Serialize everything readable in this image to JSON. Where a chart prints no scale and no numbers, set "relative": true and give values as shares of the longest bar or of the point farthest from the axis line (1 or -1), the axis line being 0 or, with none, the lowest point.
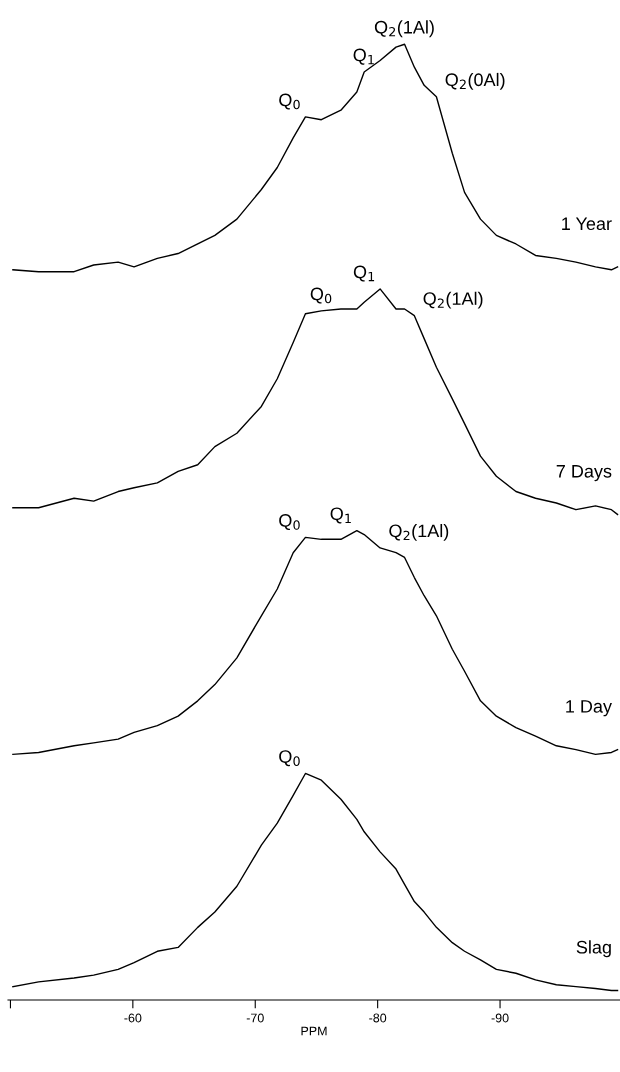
{
  "chart_data": {
    "type": "line",
    "relative": true,
    "xlim": [
      -49.8,
      -99.8
    ],
    "xlabel": "PPM",
    "grid": false,
    "legend": false,
    "xticks": [
      {
        "value": -50,
        "label": null
      },
      -60,
      -70,
      -80,
      -90
    ],
    "x": [
      -50.2,
      -52.3,
      -55.2,
      -56.8,
      -58.8,
      -60.1,
      -62.0,
      -63.7,
      -65.3,
      -66.7,
      -68.5,
      -70.5,
      -71.8,
      -73.1,
      -74.1,
      -75.4,
      -77.0,
      -78.3,
      -78.9,
      -80.2,
      -81.5,
      -82.2,
      -83.0,
      -83.8,
      -84.8,
      -86.1,
      -87.1,
      -88.4,
      -89.7,
      -91.3,
      -92.9,
      -94.6,
      -96.2,
      -97.8,
      -99.1,
      -99.6
    ],
    "series": [
      {
        "name": "1 Year",
        "color": "#000000",
        "values": [
          0.764,
          0.762,
          0.762,
          0.769,
          0.772,
          0.767,
          0.776,
          0.781,
          0.791,
          0.8,
          0.817,
          0.848,
          0.871,
          0.902,
          0.924,
          0.921,
          0.931,
          0.95,
          0.971,
          0.983,
          0.997,
          1.0,
          0.976,
          0.957,
          0.945,
          0.886,
          0.845,
          0.817,
          0.8,
          0.791,
          0.779,
          0.776,
          0.772,
          0.767,
          0.764,
          0.767
        ]
      },
      {
        "name": "7 Days",
        "color": "#000000",
        "values": [
          0.515,
          0.515,
          0.525,
          0.522,
          0.532,
          0.536,
          0.541,
          0.553,
          0.56,
          0.579,
          0.593,
          0.621,
          0.65,
          0.688,
          0.718,
          0.721,
          0.723,
          0.723,
          0.73,
          0.744,
          0.723,
          0.723,
          0.716,
          0.692,
          0.662,
          0.629,
          0.603,
          0.569,
          0.548,
          0.532,
          0.525,
          0.52,
          0.513,
          0.517,
          0.513,
          0.508
        ]
      },
      {
        "name": "1 Day",
        "color": "#000000",
        "values": [
          0.257,
          0.259,
          0.266,
          0.269,
          0.273,
          0.28,
          0.287,
          0.297,
          0.313,
          0.33,
          0.358,
          0.402,
          0.43,
          0.468,
          0.484,
          0.482,
          0.482,
          0.491,
          0.487,
          0.473,
          0.468,
          0.463,
          0.442,
          0.423,
          0.402,
          0.367,
          0.344,
          0.313,
          0.297,
          0.285,
          0.276,
          0.266,
          0.262,
          0.257,
          0.259,
          0.262
        ]
      },
      {
        "name": "Slag",
        "color": "#000000",
        "values": [
          0.014,
          0.019,
          0.023,
          0.026,
          0.032,
          0.039,
          0.051,
          0.055,
          0.076,
          0.092,
          0.119,
          0.162,
          0.185,
          0.214,
          0.237,
          0.23,
          0.21,
          0.189,
          0.176,
          0.155,
          0.137,
          0.121,
          0.103,
          0.092,
          0.076,
          0.06,
          0.051,
          0.042,
          0.032,
          0.028,
          0.021,
          0.016,
          0.014,
          0.012,
          0.01,
          0.01
        ]
      }
    ],
    "annotations": [
      {
        "text": "Q$_{0}$",
        "x": -74.1,
        "y": 0.924
      },
      {
        "text": "Q$_{1}$",
        "x": -78.9,
        "y": 0.971
      },
      {
        "text": "Q$_{2}$(1Al)",
        "x": -82.2,
        "y": 1.0
      },
      {
        "text": "Q$_{2}$(0Al)",
        "x": -84.8,
        "y": 0.945
      },
      {
        "text": "Q$_{0}$",
        "x": -75.4,
        "y": 0.721
      },
      {
        "text": "Q$_{1}$",
        "x": -80.2,
        "y": 0.744
      },
      {
        "text": "Q$_{2}$(1Al)",
        "x": -83.0,
        "y": 0.716
      },
      {
        "text": "Q$_{0}$",
        "x": -74.1,
        "y": 0.484
      },
      {
        "text": "Q$_{1}$",
        "x": -78.3,
        "y": 0.491
      },
      {
        "text": "Q$_{2}$(1Al)",
        "x": -80.2,
        "y": 0.473
      },
      {
        "text": "Q$_{0}$",
        "x": -74.1,
        "y": 0.237
      }
    ]
  }
}
